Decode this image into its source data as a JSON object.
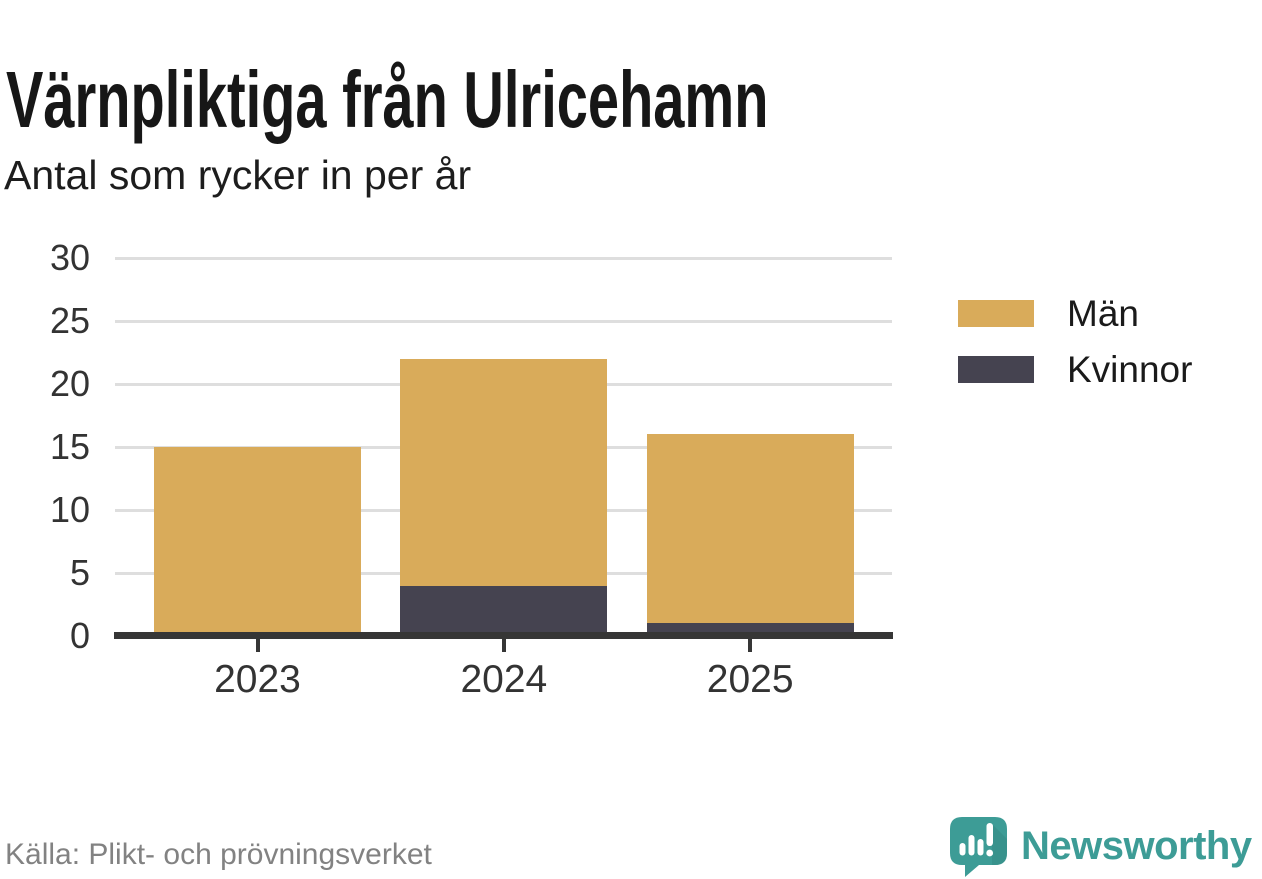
{
  "header": {
    "title": "Värnpliktiga från Ulricehamn",
    "subtitle": "Antal som rycker in per år"
  },
  "footer": {
    "source": "Källa: Plikt- och prövningsverket",
    "brand_name": "Newsworthy"
  },
  "icons": {
    "brand_logo": "newsworthy-speech-bubble-bar-chart-icon"
  },
  "colors": {
    "men_bar": "#d9ab5a",
    "women_bar": "#454350",
    "gridline": "#dedede",
    "axis": "#363636",
    "tick_label": "#333333",
    "title_text": "#171717",
    "source_text": "#828282",
    "brand_teal": "#3d9c96"
  },
  "legend": {
    "items": [
      {
        "label": "Män",
        "color": "#d9ab5a"
      },
      {
        "label": "Kvinnor",
        "color": "#454350"
      }
    ]
  },
  "chart_data": {
    "type": "bar",
    "stacked": true,
    "title": "Värnpliktiga från Ulricehamn",
    "subtitle": "Antal som rycker in per år",
    "categories": [
      "2023",
      "2024",
      "2025"
    ],
    "series": [
      {
        "name": "Män",
        "color": "#d9ab5a",
        "values": [
          15,
          18,
          15
        ]
      },
      {
        "name": "Kvinnor",
        "color": "#454350",
        "values": [
          0,
          4,
          1
        ]
      }
    ],
    "stack_order_bottom_to_top": [
      "Kvinnor",
      "Män"
    ],
    "totals": [
      15,
      22,
      16
    ],
    "xlabel": "",
    "ylabel": "",
    "ylim": [
      0,
      30
    ],
    "yticks": [
      0,
      5,
      10,
      15,
      20,
      25,
      30
    ],
    "grid": true,
    "legend_position": "right"
  }
}
